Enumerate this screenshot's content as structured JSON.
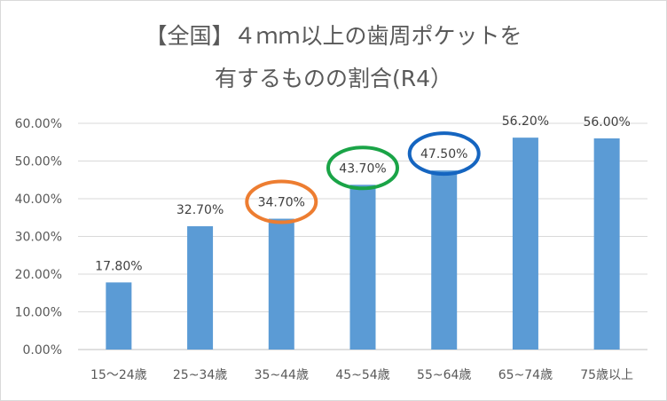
{
  "chart_data": {
    "type": "bar",
    "title_line1": "【全国】４ｍｍ以上の歯周ポケットを",
    "title_line2": "有するものの割合(R4）",
    "categories": [
      "15～24歳",
      "25~34歳",
      "35~44歳",
      "45~54歳",
      "55~64歳",
      "65~74歳",
      "75歳以上"
    ],
    "values": [
      17.8,
      32.7,
      34.7,
      43.7,
      47.5,
      56.2,
      56.0
    ],
    "data_labels": [
      "17.80%",
      "32.70%",
      "34.70%",
      "43.70%",
      "47.50%",
      "56.20%",
      "56.00%"
    ],
    "y_ticks": [
      "0.00%",
      "10.00%",
      "20.00%",
      "30.00%",
      "40.00%",
      "50.00%",
      "60.00%"
    ],
    "ylim": [
      0,
      60
    ],
    "grid": true,
    "bar_color": "#5b9bd5",
    "highlights": [
      {
        "category": "35~44歳",
        "color": "#ed7d31"
      },
      {
        "category": "45~54歳",
        "color": "#1aa447"
      },
      {
        "category": "55~64歳",
        "color": "#1565c0"
      }
    ]
  }
}
